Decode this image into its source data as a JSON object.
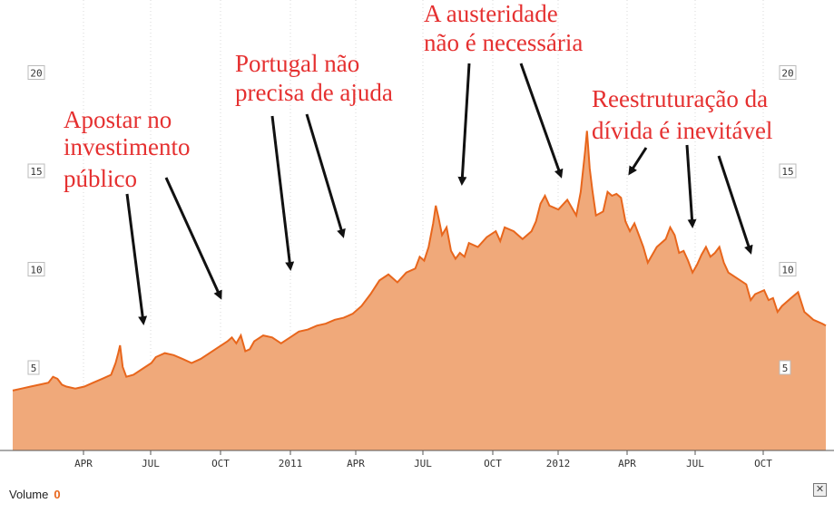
{
  "chart_data": {
    "type": "area",
    "x_tick_labels": [
      "APR",
      "JUL",
      "OCT",
      "2011",
      "APR",
      "JUL",
      "OCT",
      "2012",
      "APR",
      "JUL",
      "OCT"
    ],
    "y_ticks": [
      5,
      10,
      15,
      20
    ],
    "ylim": [
      0,
      22
    ],
    "grid": true,
    "colors": {
      "fill": "#f0a97a",
      "line": "#e8661c",
      "annotation_text": "#e53030",
      "arrow": "#111111"
    },
    "series": [
      {
        "values": [
          [
            0,
            3.9
          ],
          [
            10,
            4.0
          ],
          [
            20,
            4.1
          ],
          [
            30,
            4.2
          ],
          [
            40,
            4.3
          ],
          [
            45,
            4.6
          ],
          [
            50,
            4.5
          ],
          [
            55,
            4.2
          ],
          [
            60,
            4.1
          ],
          [
            70,
            4.0
          ],
          [
            80,
            4.1
          ],
          [
            90,
            4.3
          ],
          [
            100,
            4.5
          ],
          [
            110,
            4.7
          ],
          [
            115,
            5.3
          ],
          [
            118,
            5.8
          ],
          [
            120,
            6.2
          ],
          [
            123,
            5.1
          ],
          [
            127,
            4.6
          ],
          [
            135,
            4.7
          ],
          [
            145,
            5.0
          ],
          [
            155,
            5.3
          ],
          [
            160,
            5.6
          ],
          [
            170,
            5.8
          ],
          [
            180,
            5.7
          ],
          [
            190,
            5.5
          ],
          [
            200,
            5.3
          ],
          [
            210,
            5.5
          ],
          [
            220,
            5.8
          ],
          [
            230,
            6.1
          ],
          [
            240,
            6.4
          ],
          [
            245,
            6.6
          ],
          [
            250,
            6.3
          ],
          [
            255,
            6.7
          ],
          [
            260,
            5.9
          ],
          [
            265,
            6.0
          ],
          [
            270,
            6.4
          ],
          [
            280,
            6.7
          ],
          [
            290,
            6.6
          ],
          [
            300,
            6.3
          ],
          [
            310,
            6.6
          ],
          [
            320,
            6.9
          ],
          [
            330,
            7.0
          ],
          [
            340,
            7.2
          ],
          [
            350,
            7.3
          ],
          [
            360,
            7.5
          ],
          [
            370,
            7.6
          ],
          [
            380,
            7.8
          ],
          [
            390,
            8.2
          ],
          [
            400,
            8.8
          ],
          [
            410,
            9.5
          ],
          [
            420,
            9.8
          ],
          [
            430,
            9.4
          ],
          [
            440,
            9.9
          ],
          [
            450,
            10.1
          ],
          [
            455,
            10.7
          ],
          [
            460,
            10.5
          ],
          [
            465,
            11.2
          ],
          [
            470,
            12.4
          ],
          [
            473,
            13.3
          ],
          [
            476,
            12.7
          ],
          [
            480,
            11.8
          ],
          [
            485,
            12.2
          ],
          [
            490,
            11.0
          ],
          [
            495,
            10.6
          ],
          [
            500,
            10.9
          ],
          [
            505,
            10.7
          ],
          [
            510,
            11.4
          ],
          [
            520,
            11.2
          ],
          [
            530,
            11.7
          ],
          [
            540,
            12.0
          ],
          [
            545,
            11.5
          ],
          [
            550,
            12.2
          ],
          [
            560,
            12.0
          ],
          [
            570,
            11.6
          ],
          [
            580,
            12.0
          ],
          [
            585,
            12.5
          ],
          [
            590,
            13.4
          ],
          [
            595,
            13.8
          ],
          [
            600,
            13.3
          ],
          [
            610,
            13.1
          ],
          [
            620,
            13.6
          ],
          [
            625,
            13.2
          ],
          [
            630,
            12.8
          ],
          [
            635,
            14.0
          ],
          [
            640,
            16.1
          ],
          [
            642,
            17.1
          ],
          [
            645,
            15.2
          ],
          [
            648,
            14.1
          ],
          [
            652,
            12.8
          ],
          [
            660,
            13.0
          ],
          [
            665,
            14.0
          ],
          [
            670,
            13.8
          ],
          [
            675,
            13.9
          ],
          [
            680,
            13.7
          ],
          [
            685,
            12.5
          ],
          [
            690,
            12.0
          ],
          [
            695,
            12.4
          ],
          [
            700,
            11.8
          ],
          [
            705,
            11.2
          ],
          [
            710,
            10.4
          ],
          [
            720,
            11.2
          ],
          [
            730,
            11.6
          ],
          [
            735,
            12.2
          ],
          [
            740,
            11.8
          ],
          [
            745,
            10.9
          ],
          [
            750,
            11.0
          ],
          [
            755,
            10.5
          ],
          [
            760,
            9.9
          ],
          [
            765,
            10.3
          ],
          [
            770,
            10.8
          ],
          [
            775,
            11.2
          ],
          [
            780,
            10.7
          ],
          [
            785,
            10.9
          ],
          [
            790,
            11.2
          ],
          [
            795,
            10.4
          ],
          [
            800,
            9.9
          ],
          [
            810,
            9.6
          ],
          [
            820,
            9.3
          ],
          [
            825,
            8.5
          ],
          [
            830,
            8.8
          ],
          [
            840,
            9.0
          ],
          [
            845,
            8.5
          ],
          [
            850,
            8.6
          ],
          [
            855,
            7.9
          ],
          [
            860,
            8.2
          ],
          [
            870,
            8.6
          ],
          [
            878,
            8.9
          ],
          [
            885,
            7.9
          ],
          [
            890,
            7.7
          ],
          [
            895,
            7.5
          ],
          [
            900,
            7.4
          ],
          [
            905,
            7.3
          ],
          [
            909,
            7.2
          ]
        ]
      }
    ],
    "annotations": [
      "Apostar no",
      "investimento",
      "público",
      "Portugal não",
      "precisa de ajuda",
      "A austeridade",
      "não é necessária",
      "Reestruturação da",
      "dívida é inevitável"
    ]
  },
  "volume": {
    "label": "Volume",
    "value": "0",
    "close_icon": "close-icon"
  }
}
